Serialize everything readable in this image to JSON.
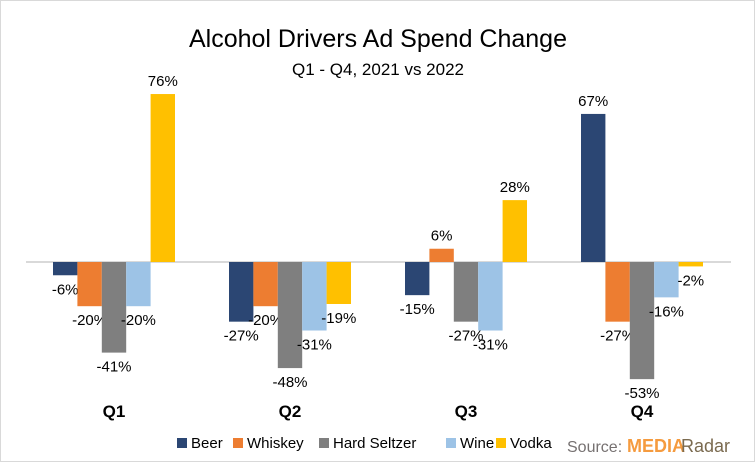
{
  "chart_data": {
    "type": "bar",
    "title": "Alcohol Drivers Ad Spend Change",
    "subtitle": "Q1 - Q4, 2021 vs 2022",
    "xlabel": "",
    "ylabel": "",
    "categories": [
      "Q1",
      "Q2",
      "Q3",
      "Q4"
    ],
    "series": [
      {
        "name": "Beer",
        "color": "#2b4673",
        "values": [
          -6,
          -27,
          -15,
          67
        ],
        "labels": [
          "-6%",
          "-27%",
          "-15%",
          "67%"
        ]
      },
      {
        "name": "Whiskey",
        "color": "#ed7d31",
        "values": [
          -20,
          -20,
          6,
          -27
        ],
        "labels": [
          "-20%",
          "-20%",
          "6%",
          "-27%"
        ]
      },
      {
        "name": "Hard Seltzer",
        "color": "#7f7f7f",
        "values": [
          -41,
          -48,
          -27,
          -53
        ],
        "labels": [
          "-41%",
          "-48%",
          "-27%",
          "-53%"
        ]
      },
      {
        "name": "Wine",
        "color": "#9dc3e6",
        "values": [
          -20,
          -31,
          -31,
          -16
        ],
        "labels": [
          "-20%",
          "-31%",
          "-31%",
          "-16%"
        ]
      },
      {
        "name": "Vodka",
        "color": "#ffc000",
        "values": [
          76,
          -19,
          28,
          -2
        ],
        "labels": [
          "76%",
          "-19%",
          "28%",
          "-2%"
        ]
      }
    ],
    "ylim": [
      -60,
      80
    ],
    "grid": false,
    "legend": "bottom"
  },
  "source": {
    "prefix": "Source:",
    "brand_a": "MEDIA",
    "brand_b": "Radar"
  }
}
